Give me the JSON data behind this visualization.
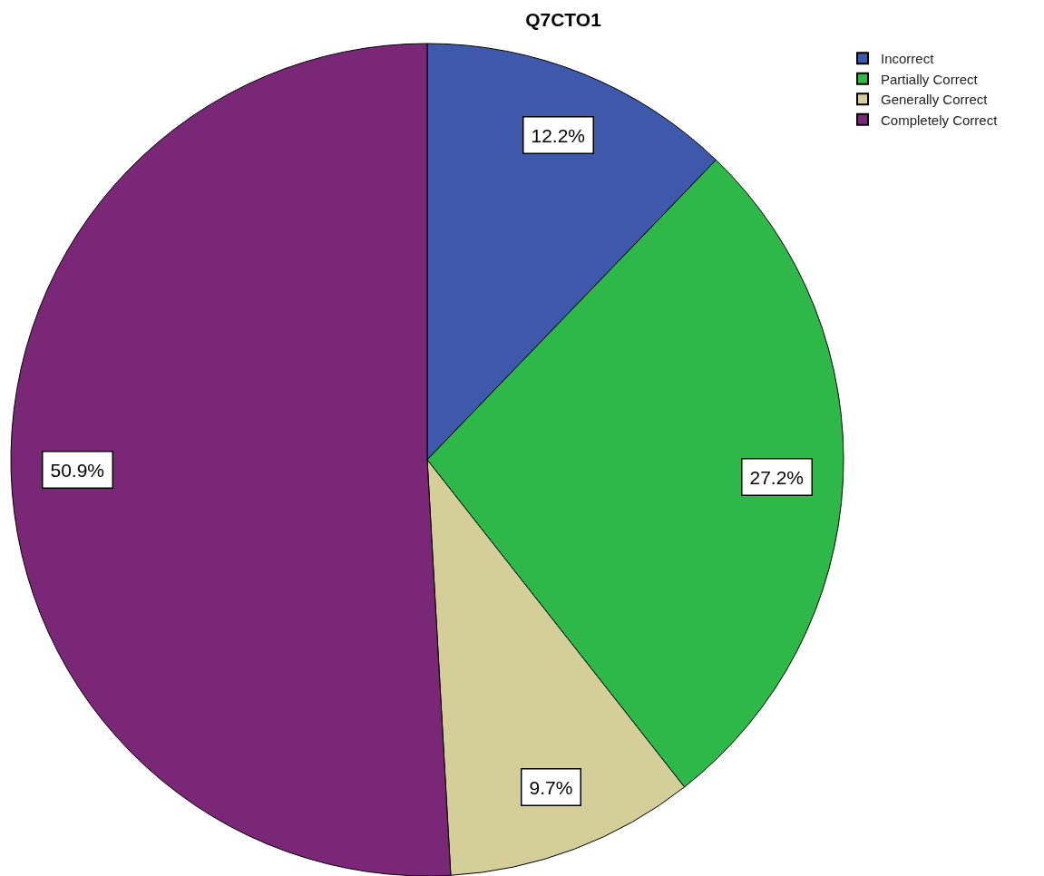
{
  "chart_data": {
    "type": "pie",
    "title": "Q7CTO1",
    "categories": [
      "Incorrect",
      "Partially Correct",
      "Generally Correct",
      "Completely Correct"
    ],
    "values": [
      12.2,
      27.2,
      9.7,
      50.9
    ],
    "colors": [
      "#3e58ac",
      "#2eb848",
      "#d4ce99",
      "#7b2778"
    ],
    "value_labels": [
      "12.2%",
      "27.2%",
      "9.7%",
      "50.9%"
    ],
    "legend": "top right"
  }
}
